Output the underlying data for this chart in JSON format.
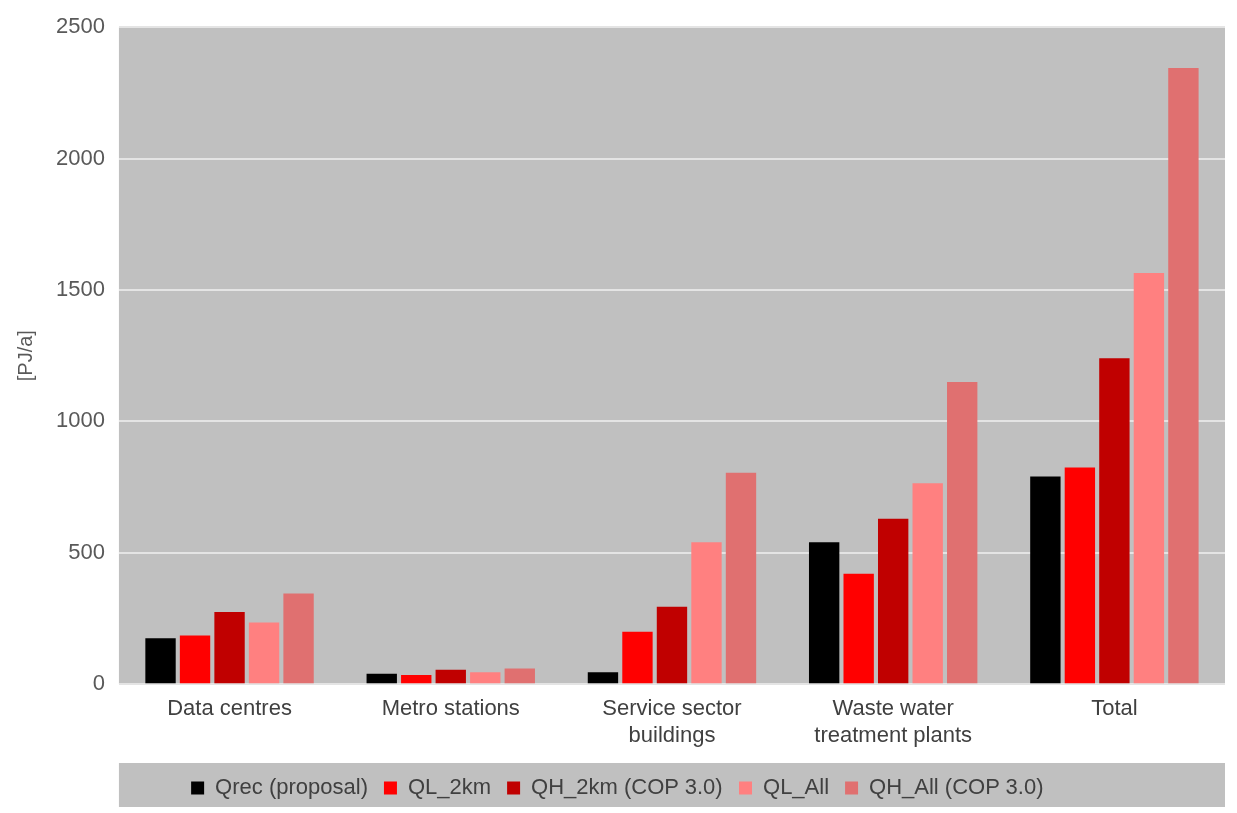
{
  "chart_data": {
    "type": "bar",
    "ylabel": "[PJ/a]",
    "categories": [
      "Data centres",
      "Metro stations",
      "Service sector buildings",
      "Waste water treatment plants",
      "Total"
    ],
    "series": [
      {
        "name": "Qrec (proposal)",
        "color": "#000000",
        "values": [
          175,
          40,
          45,
          540,
          790
        ]
      },
      {
        "name": "QL_2km",
        "color": "#ff0000",
        "values": [
          185,
          35,
          200,
          420,
          825
        ]
      },
      {
        "name": "QH_2km (COP 3.0)",
        "color": "#c00000",
        "values": [
          275,
          55,
          295,
          630,
          1240
        ]
      },
      {
        "name": "QL_All",
        "color": "#ff8080",
        "values": [
          235,
          45,
          540,
          765,
          1565
        ]
      },
      {
        "name": "QH_All (COP 3.0)",
        "color": "#e07070",
        "values": [
          345,
          60,
          805,
          1150,
          2345
        ]
      }
    ],
    "ylim": [
      0,
      2500
    ],
    "yticks": [
      0,
      500,
      1000,
      1500,
      2000,
      2500
    ],
    "grid": "y",
    "legend": "bottom"
  }
}
